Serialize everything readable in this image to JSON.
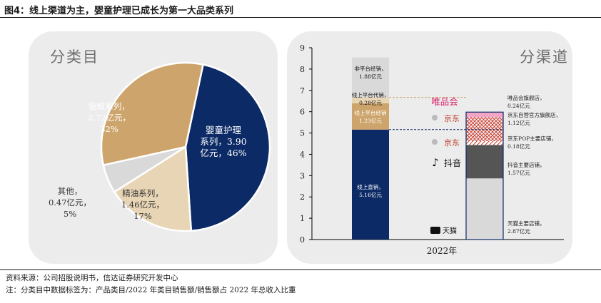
{
  "figure_title": "图4：线上渠道为主，婴童护理已成长为第一大品类系列",
  "left_panel": {
    "title": "分类目"
  },
  "right_panel": {
    "title": "分渠道"
  },
  "chart_data": [
    {
      "type": "pie",
      "title": "分类目",
      "slices": [
        {
          "name": "婴童护理系列",
          "value": 3.9,
          "percent": 46,
          "color": "#0c2a66",
          "label_lines": [
            "婴童护理",
            "系列，3.90",
            "亿元，46%"
          ]
        },
        {
          "name": "精油系列",
          "value": 1.46,
          "percent": 17,
          "color": "#e8d5b5",
          "label_lines": [
            "精油系列，",
            "1.46亿元，",
            "17%"
          ]
        },
        {
          "name": "其他",
          "value": 0.47,
          "percent": 5,
          "color": "#d9d9d9",
          "label_lines": [
            "其他，",
            "0.47亿元，",
            "5%"
          ]
        },
        {
          "name": "驱蚊系列",
          "value": 2.72,
          "percent": 32,
          "color": "#cda46b",
          "label_lines": [
            "驱蚊系列，",
            "2.72亿元，",
            "32%"
          ]
        }
      ]
    },
    {
      "type": "bar",
      "title": "分渠道",
      "xlabel": "2022年",
      "ylim": [
        0,
        9
      ],
      "yticks": [
        "0",
        "1",
        "2",
        "3",
        "4",
        "5",
        "6",
        "7",
        "8",
        "9"
      ],
      "stacks": [
        {
          "segments": [
            {
              "name": "线上直销",
              "value": 5.16,
              "color": "#0c2a66",
              "label_lines": [
                "线上直销，",
                "5.16亿元"
              ]
            },
            {
              "name": "线上平台经销",
              "value": 1.23,
              "color": "#cda46b",
              "label_lines": [
                "线上平台经销",
                "1.23亿元"
              ]
            },
            {
              "name": "线上平台代销",
              "value": 0.28,
              "color": "#e8d5b5",
              "label_lines": [
                "线上平台代销，",
                "0.28亿元"
              ]
            },
            {
              "name": "非平台经销",
              "value": 1.88,
              "color": "#d9d9d9",
              "label_lines": [
                "非平台经销，",
                "1.88亿元"
              ]
            }
          ]
        },
        {
          "segments": [
            {
              "name": "天猫主要店铺",
              "value": 2.87,
              "color": "#d9d9d9",
              "label_lines": [
                "天猫主要店铺，",
                "2.87亿元"
              ],
              "logo": "天猫"
            },
            {
              "name": "抖音主要店铺",
              "value": 1.57,
              "color": "#555555",
              "label_lines": [
                "抖音主要店铺，",
                "1.57亿元"
              ],
              "logo": "抖音"
            },
            {
              "name": "京东POP主要店铺",
              "value": 0.18,
              "color": "#c0392b",
              "pattern": "hatch",
              "label_lines": [
                "京东POP主要店铺，",
                "0.18亿元"
              ],
              "logo": "京东"
            },
            {
              "name": "京东自营官方旗舰店",
              "value": 1.12,
              "color": "#c0392b",
              "pattern": "crosshatch",
              "label_lines": [
                "京东自营官方旗舰店，",
                "1.12亿元"
              ],
              "logo": "京东"
            },
            {
              "name": "唯品会旗舰店",
              "value": 0.24,
              "color": "#f2a6c6",
              "label_lines": [
                "唯品会旗舰店，",
                "0.24亿元"
              ],
              "logo": "唯品会"
            }
          ]
        }
      ]
    }
  ],
  "logos": {
    "vip": "唯品会",
    "jd": "京东",
    "douyin": "抖音",
    "tmall": "天猫"
  },
  "footnotes": [
    "资料来源：公司招股说明书，信达证券研究开发中心",
    "注：分类目中数据标签为：产品类目/2022 年类目销售额/销售额占 2022 年总收入比重"
  ]
}
